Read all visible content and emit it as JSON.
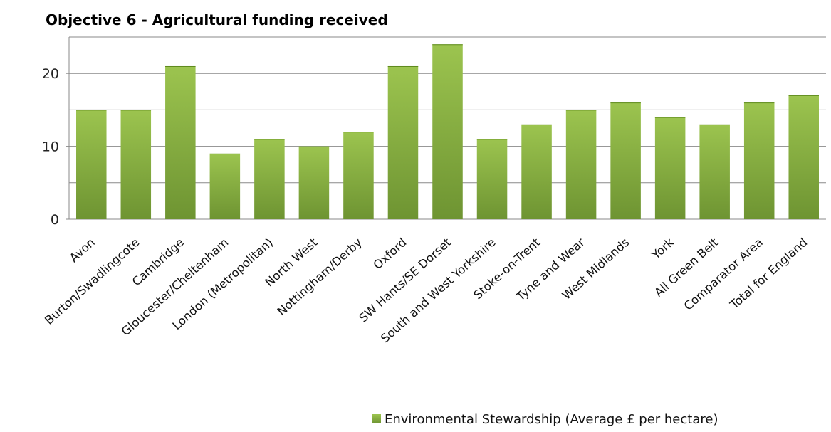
{
  "chart_data": {
    "type": "bar",
    "title": "Objective 6 - Agricultural funding received",
    "categories": [
      "Avon",
      "Burton/Swadlingcote",
      "Cambridge",
      "Gloucester/Cheltenham",
      "London (Metropolitan)",
      "North West",
      "Nottingham/Derby",
      "Oxford",
      "SW Hants/SE Dorset",
      "South and West Yorkshire",
      "Stoke-on-Trent",
      "Tyne and Wear",
      "West Midlands",
      "York",
      "All Green Belt",
      "Comparator Area",
      "Total for England"
    ],
    "series": [
      {
        "name": "Environmental Stewardship (Average £ per hectare)",
        "values": [
          15,
          15,
          21,
          9,
          11,
          10,
          12,
          21,
          24,
          11,
          13,
          15,
          16,
          14,
          13,
          16,
          17
        ]
      }
    ],
    "y_ticks": [
      "0",
      "10",
      "20"
    ],
    "ylim": [
      0,
      25
    ],
    "grid": true,
    "legend_position": "bottom-right",
    "bar_color": "#8db446"
  }
}
